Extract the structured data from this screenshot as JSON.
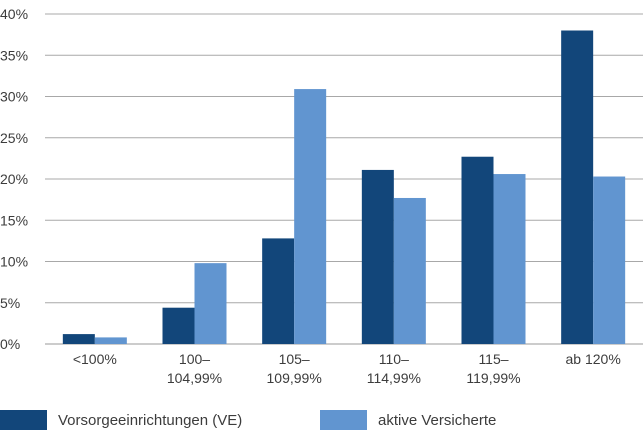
{
  "chart_data": {
    "type": "bar",
    "categories": [
      [
        "<100%"
      ],
      [
        "100–",
        "104,99%"
      ],
      [
        "105–",
        "109,99%"
      ],
      [
        "110–",
        "114,99%"
      ],
      [
        "115–",
        "119,99%"
      ],
      [
        "ab 120%"
      ]
    ],
    "series": [
      {
        "name": "Vorsorgeeinrichtungen (VE)",
        "color": "#12467a",
        "values": [
          1.2,
          4.4,
          12.8,
          21.1,
          22.7,
          38.0
        ]
      },
      {
        "name": "aktive Versicherte",
        "color": "#6195d0",
        "values": [
          0.8,
          9.8,
          30.9,
          17.7,
          20.6,
          20.3
        ]
      }
    ],
    "yticks": [
      "0%",
      "5%",
      "10%",
      "15%",
      "20%",
      "25%",
      "30%",
      "35%",
      "40%"
    ],
    "ylim": [
      0,
      40
    ],
    "grid": true,
    "legend_position": "bottom"
  }
}
